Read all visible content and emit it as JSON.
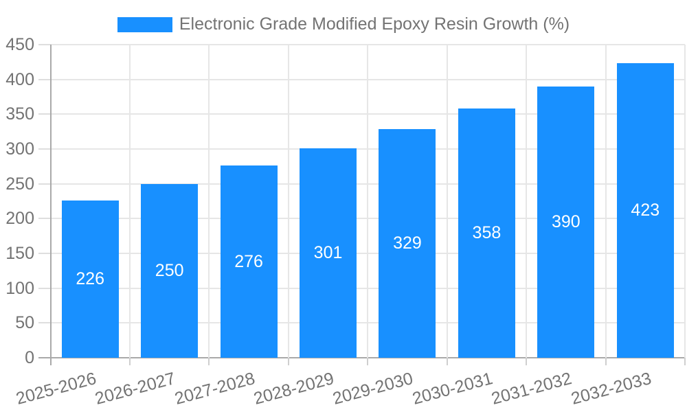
{
  "chart_data": {
    "type": "bar",
    "title": "Electronic Grade Modified Epoxy Resin Growth (%)",
    "categories": [
      "2025-2026",
      "2026-2027",
      "2027-2028",
      "2028-2029",
      "2029-2030",
      "2030-2031",
      "2031-2032",
      "2032-2033"
    ],
    "values": [
      226,
      250,
      276,
      301,
      329,
      358,
      390,
      423
    ],
    "xlabel": "",
    "ylabel": "",
    "ylim": [
      0,
      450
    ],
    "yticks": [
      0,
      50,
      100,
      150,
      200,
      250,
      300,
      350,
      400,
      450
    ],
    "grid": true,
    "legend_position": "top",
    "value_labels": "inside-center",
    "x_label_rotation_deg": -15,
    "colors": {
      "bar": "#1890ff",
      "gridline": "#e6e6e6",
      "axis_line": "#a9a9a9",
      "y_tick": "#dedede",
      "x_tick": "#cfcfcf",
      "axis_text": "#737373",
      "value_label": "#ffffff",
      "background": "#ffffff"
    }
  }
}
